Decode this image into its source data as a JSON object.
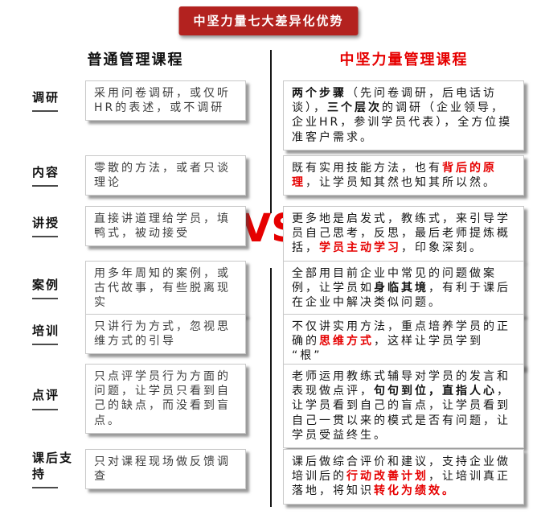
{
  "banner": {
    "title": "中坚力量七大差异化优势"
  },
  "columns": {
    "left_header": "普通管理课程",
    "right_header": "中坚力量管理课程"
  },
  "vs_label": "VS",
  "colors": {
    "banner_red": "#b3221f",
    "accent_red": "#e60000",
    "divider_black": "#161616"
  },
  "rows": [
    {
      "label": "调研",
      "left": "采用问卷调研，或仅听HR的表述，或不调研",
      "right": [
        {
          "t": "两个步骤",
          "s": "bold"
        },
        {
          "t": "（先问卷调研，后电话访谈），",
          "s": "normal"
        },
        {
          "t": "三个层次",
          "s": "bold"
        },
        {
          "t": "的调研（企业领导，企业HR，参训学员代表），全方位摸准客户需求。",
          "s": "normal"
        }
      ]
    },
    {
      "label": "内容",
      "left": "零散的方法，或者只谈理论",
      "right": [
        {
          "t": "既有实用技能方法，也有",
          "s": "normal"
        },
        {
          "t": "背后的原理",
          "s": "redbold"
        },
        {
          "t": "，让学员知其然也知其所以然。",
          "s": "normal"
        }
      ]
    },
    {
      "label": "讲授",
      "left": "直接讲道理给学员，填鸭式，被动接受",
      "right": [
        {
          "t": "更多地是启发式，教练式，来引导学员自己思考，反思，最后老师提炼概括，",
          "s": "normal"
        },
        {
          "t": "学员主动学习",
          "s": "redbold"
        },
        {
          "t": "，印象深刻。",
          "s": "normal"
        }
      ]
    },
    {
      "label": "案例",
      "left": "用多年周知的案例，或古代故事，有些脱离现实",
      "right": [
        {
          "t": "全部用目前企业中常见的问题做案例，让学员如",
          "s": "normal"
        },
        {
          "t": "身临其境",
          "s": "bold"
        },
        {
          "t": "，有利于课后在企业中解决类似问题。",
          "s": "normal"
        }
      ]
    },
    {
      "label": "培训",
      "left": "只讲行为方式，忽视思维方式的引导",
      "right": [
        {
          "t": "不仅讲实用方法，重点培养学员的正确的",
          "s": "normal"
        },
        {
          "t": "思维方式",
          "s": "redbold"
        },
        {
          "t": "，这样让学员学到 “根”",
          "s": "normal"
        }
      ]
    },
    {
      "label": "点评",
      "left": "只点评学员行为方面的问题，让学员只看到自己的缺点，而没看到盲点。",
      "right": [
        {
          "t": "老师运用教练式辅导对学员的发言和表现做点评，",
          "s": "normal"
        },
        {
          "t": "句句到位，直指人心",
          "s": "bold"
        },
        {
          "t": "，让学员看到自己的盲点，让学员看到自己一贯以来的模式是否有问题，让学员受益终生。",
          "s": "normal"
        }
      ]
    },
    {
      "label": "课后支持",
      "left": "只对课程现场做反馈调查",
      "right": [
        {
          "t": "课后做综合评价和建议，支持企业做培训后的",
          "s": "normal"
        },
        {
          "t": "行动改善计划",
          "s": "redbold"
        },
        {
          "t": "，让培训真正落地，将知识",
          "s": "normal"
        },
        {
          "t": "转化为绩效。",
          "s": "redbold"
        }
      ]
    }
  ]
}
